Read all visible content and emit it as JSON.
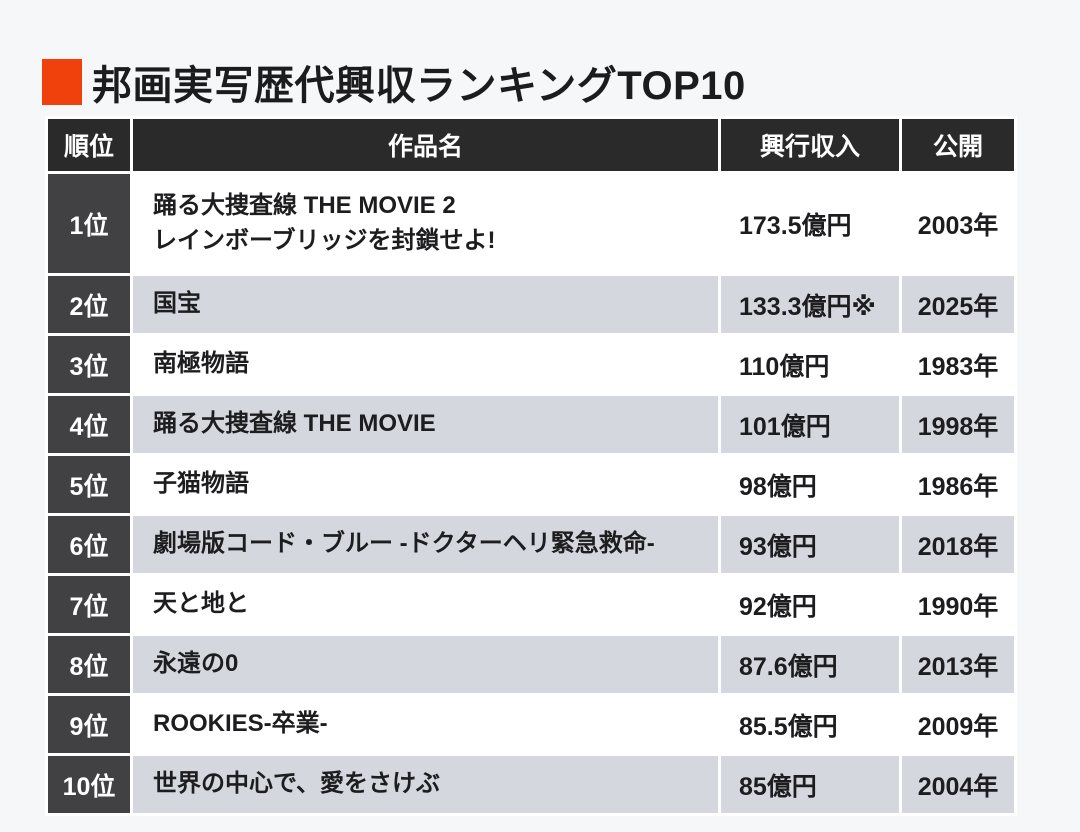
{
  "colors": {
    "accent": "#f0410c",
    "header_bg": "#2a2a2b",
    "rank_bg": "#414144",
    "stripe": "#d4d8de",
    "page_bg": "#f6f7f8"
  },
  "chart_data": {
    "type": "table",
    "title": "邦画実写歴代興収ランキングTOP10",
    "columns": [
      "順位",
      "作品名",
      "興行収入",
      "公開"
    ],
    "rows": [
      [
        "1位",
        "踊る大捜査線 THE MOVIE 2\nレインボーブリッジを封鎖せよ!",
        "173.5億円",
        "2003年"
      ],
      [
        "2位",
        "国宝",
        "133.3億円※",
        "2025年"
      ],
      [
        "3位",
        "南極物語",
        "110億円",
        "1983年"
      ],
      [
        "4位",
        "踊る大捜査線 THE MOVIE",
        "101億円",
        "1998年"
      ],
      [
        "5位",
        "子猫物語",
        "98億円",
        "1986年"
      ],
      [
        "6位",
        "劇場版コード・ブルー -ドクターヘリ緊急救命-",
        "93億円",
        "2018年"
      ],
      [
        "7位",
        "天と地と",
        "92億円",
        "1990年"
      ],
      [
        "8位",
        "永遠の0",
        "87.6億円",
        "2013年"
      ],
      [
        "9位",
        "ROOKIES-卒業-",
        "85.5億円",
        "2009年"
      ],
      [
        "10位",
        "世界の中心で、愛をさけぶ",
        "85億円",
        "2004年"
      ]
    ]
  }
}
